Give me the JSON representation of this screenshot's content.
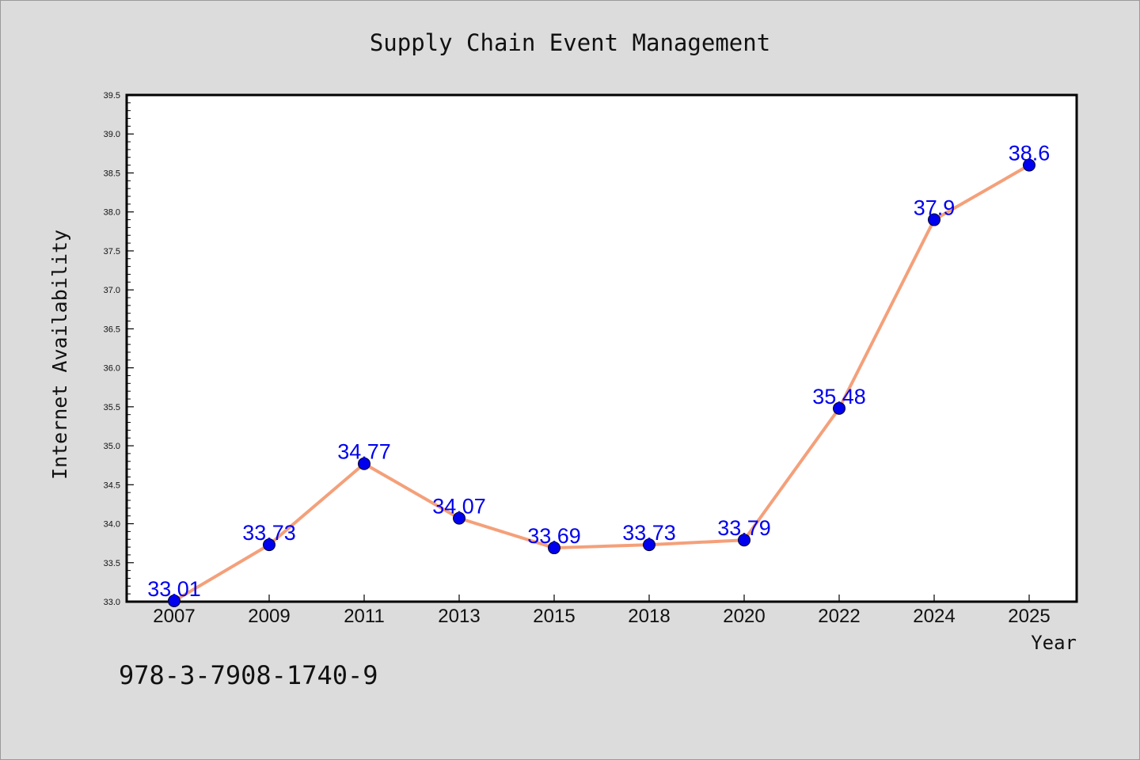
{
  "chart_data": {
    "type": "line",
    "title": "Supply Chain Event Management",
    "xlabel": "Year",
    "ylabel": "Internet Availability",
    "categories": [
      "2007",
      "2009",
      "2011",
      "2013",
      "2015",
      "2018",
      "2020",
      "2022",
      "2024",
      "2025"
    ],
    "values": [
      33.01,
      33.73,
      34.77,
      34.07,
      33.69,
      33.73,
      33.79,
      35.48,
      37.9,
      38.6
    ],
    "data_labels": [
      "33.01",
      "33.73",
      "34.77",
      "34.07",
      "33.69",
      "33.73",
      "33.79",
      "35.48",
      "37.9",
      "38.6"
    ],
    "ylim": [
      33.0,
      39.5
    ],
    "y_ticks": [
      "33.0",
      "33.5",
      "34.0",
      "34.5",
      "35.0",
      "35.5",
      "36.0",
      "36.5",
      "37.0",
      "37.5",
      "38.0",
      "38.5",
      "39.0",
      "39.5"
    ],
    "grid": false,
    "colors": {
      "line": "#f4a07a",
      "marker": "#0000ee",
      "label": "#0000ee",
      "plot_background": "#ffffff",
      "figure_background": "#dcdcdc"
    }
  },
  "footer": {
    "isbn": "978-3-7908-1740-9"
  }
}
